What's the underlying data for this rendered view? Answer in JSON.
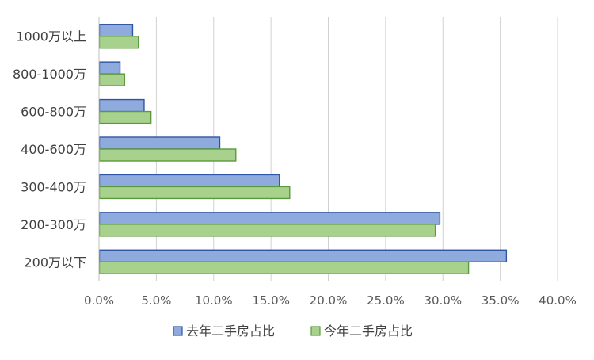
{
  "chart_data": {
    "type": "bar",
    "orientation": "horizontal",
    "categories": [
      "1000万以上",
      "800-1000万",
      "600-800万",
      "400-600万",
      "300-400万",
      "200-300万",
      "200万以下"
    ],
    "series": [
      {
        "name": "去年二手房占比",
        "values": [
          0.029,
          0.018,
          0.039,
          0.105,
          0.157,
          0.297,
          0.355
        ],
        "color": "#8FAADC",
        "border": "#2F55A4"
      },
      {
        "name": "今年二手房占比",
        "values": [
          0.034,
          0.022,
          0.045,
          0.119,
          0.166,
          0.293,
          0.322
        ],
        "color": "#A9D18E",
        "border": "#5B9A3C"
      }
    ],
    "xlim": [
      0,
      0.4
    ],
    "xticks": [
      "0.0%",
      "5.0%",
      "10.0%",
      "15.0%",
      "20.0%",
      "25.0%",
      "30.0%",
      "35.0%",
      "40.0%"
    ],
    "grid": true,
    "legend_position": "bottom",
    "title": "",
    "xlabel": "",
    "ylabel": ""
  }
}
